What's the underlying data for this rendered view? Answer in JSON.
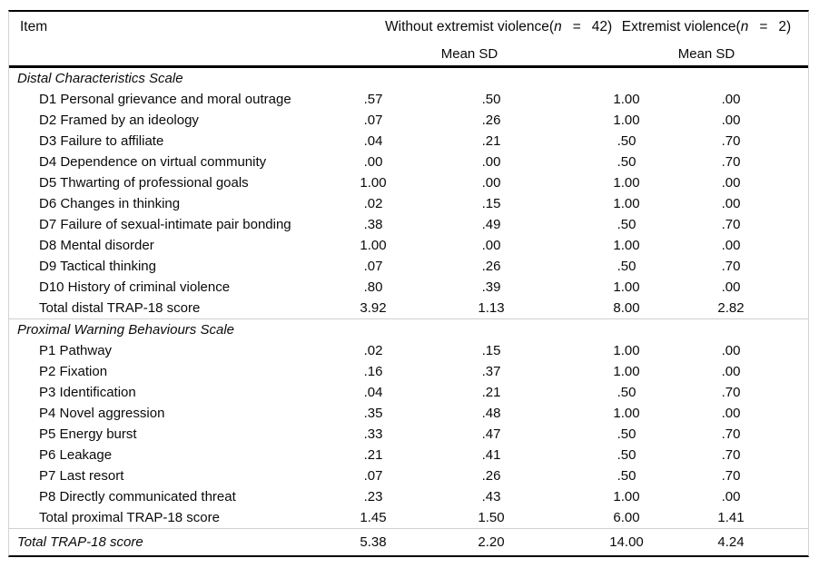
{
  "table": {
    "header": {
      "item": "Item",
      "group1": {
        "prefix": "Without extremist violence(",
        "n": "n",
        "eq": "=",
        "count": "42)"
      },
      "group2": {
        "prefix": "Extremist violence(",
        "n": "n",
        "eq": "=",
        "count": "2)"
      },
      "subheader": "Mean SD"
    },
    "sections": [
      {
        "title": "Distal Characteristics Scale",
        "rows": [
          {
            "label": "D1 Personal grievance and moral outrage",
            "values": [
              ".57",
              ".50",
              "1.00",
              ".00"
            ]
          },
          {
            "label": "D2 Framed by an ideology",
            "values": [
              ".07",
              ".26",
              "1.00",
              ".00"
            ]
          },
          {
            "label": "D3 Failure to affiliate",
            "values": [
              ".04",
              ".21",
              ".50",
              ".70"
            ]
          },
          {
            "label": "D4 Dependence on virtual community",
            "values": [
              ".00",
              ".00",
              ".50",
              ".70"
            ]
          },
          {
            "label": "D5 Thwarting of professional goals",
            "values": [
              "1.00",
              ".00",
              "1.00",
              ".00"
            ]
          },
          {
            "label": "D6 Changes in thinking",
            "values": [
              ".02",
              ".15",
              "1.00",
              ".00"
            ]
          },
          {
            "label": "D7 Failure of sexual-intimate pair bonding",
            "values": [
              ".38",
              ".49",
              ".50",
              ".70"
            ]
          },
          {
            "label": "D8 Mental disorder",
            "values": [
              "1.00",
              ".00",
              "1.00",
              ".00"
            ]
          },
          {
            "label": "D9 Tactical thinking",
            "values": [
              ".07",
              ".26",
              ".50",
              ".70"
            ]
          },
          {
            "label": "D10 History of criminal violence",
            "values": [
              ".80",
              ".39",
              "1.00",
              ".00"
            ]
          },
          {
            "label": "Total distal TRAP-18 score",
            "values": [
              "3.92",
              "1.13",
              "8.00",
              "2.82"
            ]
          }
        ]
      },
      {
        "title": "Proximal Warning Behaviours Scale",
        "rows": [
          {
            "label": "P1 Pathway",
            "values": [
              ".02",
              ".15",
              "1.00",
              ".00"
            ]
          },
          {
            "label": "P2 Fixation",
            "values": [
              ".16",
              ".37",
              "1.00",
              ".00"
            ]
          },
          {
            "label": "P3 Identification",
            "values": [
              ".04",
              ".21",
              ".50",
              ".70"
            ]
          },
          {
            "label": "P4 Novel aggression",
            "values": [
              ".35",
              ".48",
              "1.00",
              ".00"
            ]
          },
          {
            "label": "P5 Energy burst",
            "values": [
              ".33",
              ".47",
              ".50",
              ".70"
            ]
          },
          {
            "label": "P6 Leakage",
            "values": [
              ".21",
              ".41",
              ".50",
              ".70"
            ]
          },
          {
            "label": "P7 Last resort",
            "values": [
              ".07",
              ".26",
              ".50",
              ".70"
            ]
          },
          {
            "label": "P8 Directly communicated threat",
            "values": [
              ".23",
              ".43",
              "1.00",
              ".00"
            ]
          }
        ]
      }
    ],
    "total_proximal_row": {
      "label": "Total proximal TRAP-18 score",
      "values": [
        "1.45",
        "1.50",
        "6.00",
        "1.41"
      ]
    },
    "total_row": {
      "label": "Total TRAP-18 score",
      "values": [
        "5.38",
        "2.20",
        "14.00",
        "4.24"
      ]
    }
  },
  "colors": {
    "background": "#ffffff",
    "text": "#0a0a0a",
    "heavy_rule": "#000000",
    "light_rule": "#d0d0d0",
    "frame_border": "#d3d3d3"
  }
}
